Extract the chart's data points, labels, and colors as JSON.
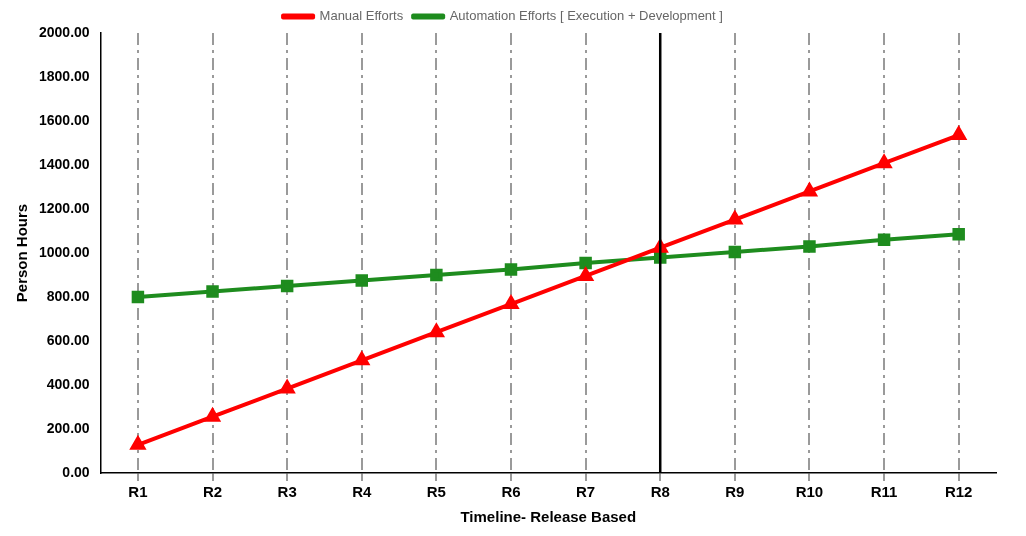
{
  "chart_data": {
    "type": "line",
    "xlabel": "Timeline- Release Based",
    "ylabel": "Person Hours",
    "categories": [
      "R1",
      "R2",
      "R3",
      "R4",
      "R5",
      "R6",
      "R7",
      "R8",
      "R9",
      "R10",
      "R11",
      "R12"
    ],
    "ylim": [
      0,
      2000
    ],
    "yticks": [
      {
        "value": 0,
        "label": "0.00"
      },
      {
        "value": 200,
        "label": "200.00"
      },
      {
        "value": 400,
        "label": "400.00"
      },
      {
        "value": 600,
        "label": "600.00"
      },
      {
        "value": 800,
        "label": "800.00"
      },
      {
        "value": 1000,
        "label": "1000.00"
      },
      {
        "value": 1200,
        "label": "1200.00"
      },
      {
        "value": 1400,
        "label": "1400.00"
      },
      {
        "value": 1600,
        "label": "1600.00"
      },
      {
        "value": 1800,
        "label": "1800.00"
      },
      {
        "value": 2000,
        "label": "2000.00"
      }
    ],
    "series": [
      {
        "name": "Manual Efforts",
        "color": "#ff0000",
        "marker": "triangle",
        "values": [
          128,
          256,
          384,
          512,
          640,
          768,
          896,
          1024,
          1152,
          1280,
          1408,
          1536
        ]
      },
      {
        "name": "Automation Efforts [ Execution + Development ]",
        "color": "#1e8c1e",
        "marker": "square",
        "values": [
          800,
          825,
          850,
          875,
          900,
          925,
          955,
          980,
          1005,
          1030,
          1060,
          1085
        ]
      }
    ],
    "ref_lines": [
      {
        "axis": "x",
        "value": "R8",
        "color": "#000000"
      }
    ],
    "grid": "x",
    "legend": "top",
    "line_style": "solid"
  }
}
